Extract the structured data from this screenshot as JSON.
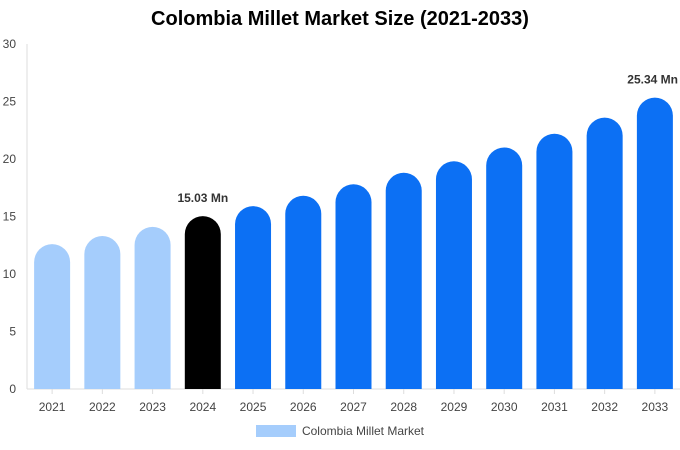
{
  "chart_data": {
    "type": "bar",
    "title": "Colombia Millet Market Size (2021-2033)",
    "categories": [
      "2021",
      "2022",
      "2023",
      "2024",
      "2025",
      "2026",
      "2027",
      "2028",
      "2029",
      "2030",
      "2031",
      "2032",
      "2033"
    ],
    "series": [
      {
        "name": "Colombia Millet Market",
        "values": [
          12.6,
          13.3,
          14.1,
          15.03,
          15.9,
          16.8,
          17.8,
          18.8,
          19.8,
          21.0,
          22.2,
          23.6,
          25.34
        ]
      }
    ],
    "ylim": [
      0,
      30
    ],
    "yticks": [
      "0",
      "5",
      "10",
      "15",
      "20",
      "25",
      "30"
    ],
    "data_labels": [
      {
        "category": "2024",
        "text": "15.03 Mn"
      },
      {
        "category": "2033",
        "text": "25.34 Mn"
      }
    ],
    "bar_colors": {
      "historical": "#a5cdfc",
      "base_year": "#000000",
      "forecast": "#0c70f4"
    },
    "base_year": "2024",
    "legend_position": "bottom-center",
    "grid": false
  }
}
